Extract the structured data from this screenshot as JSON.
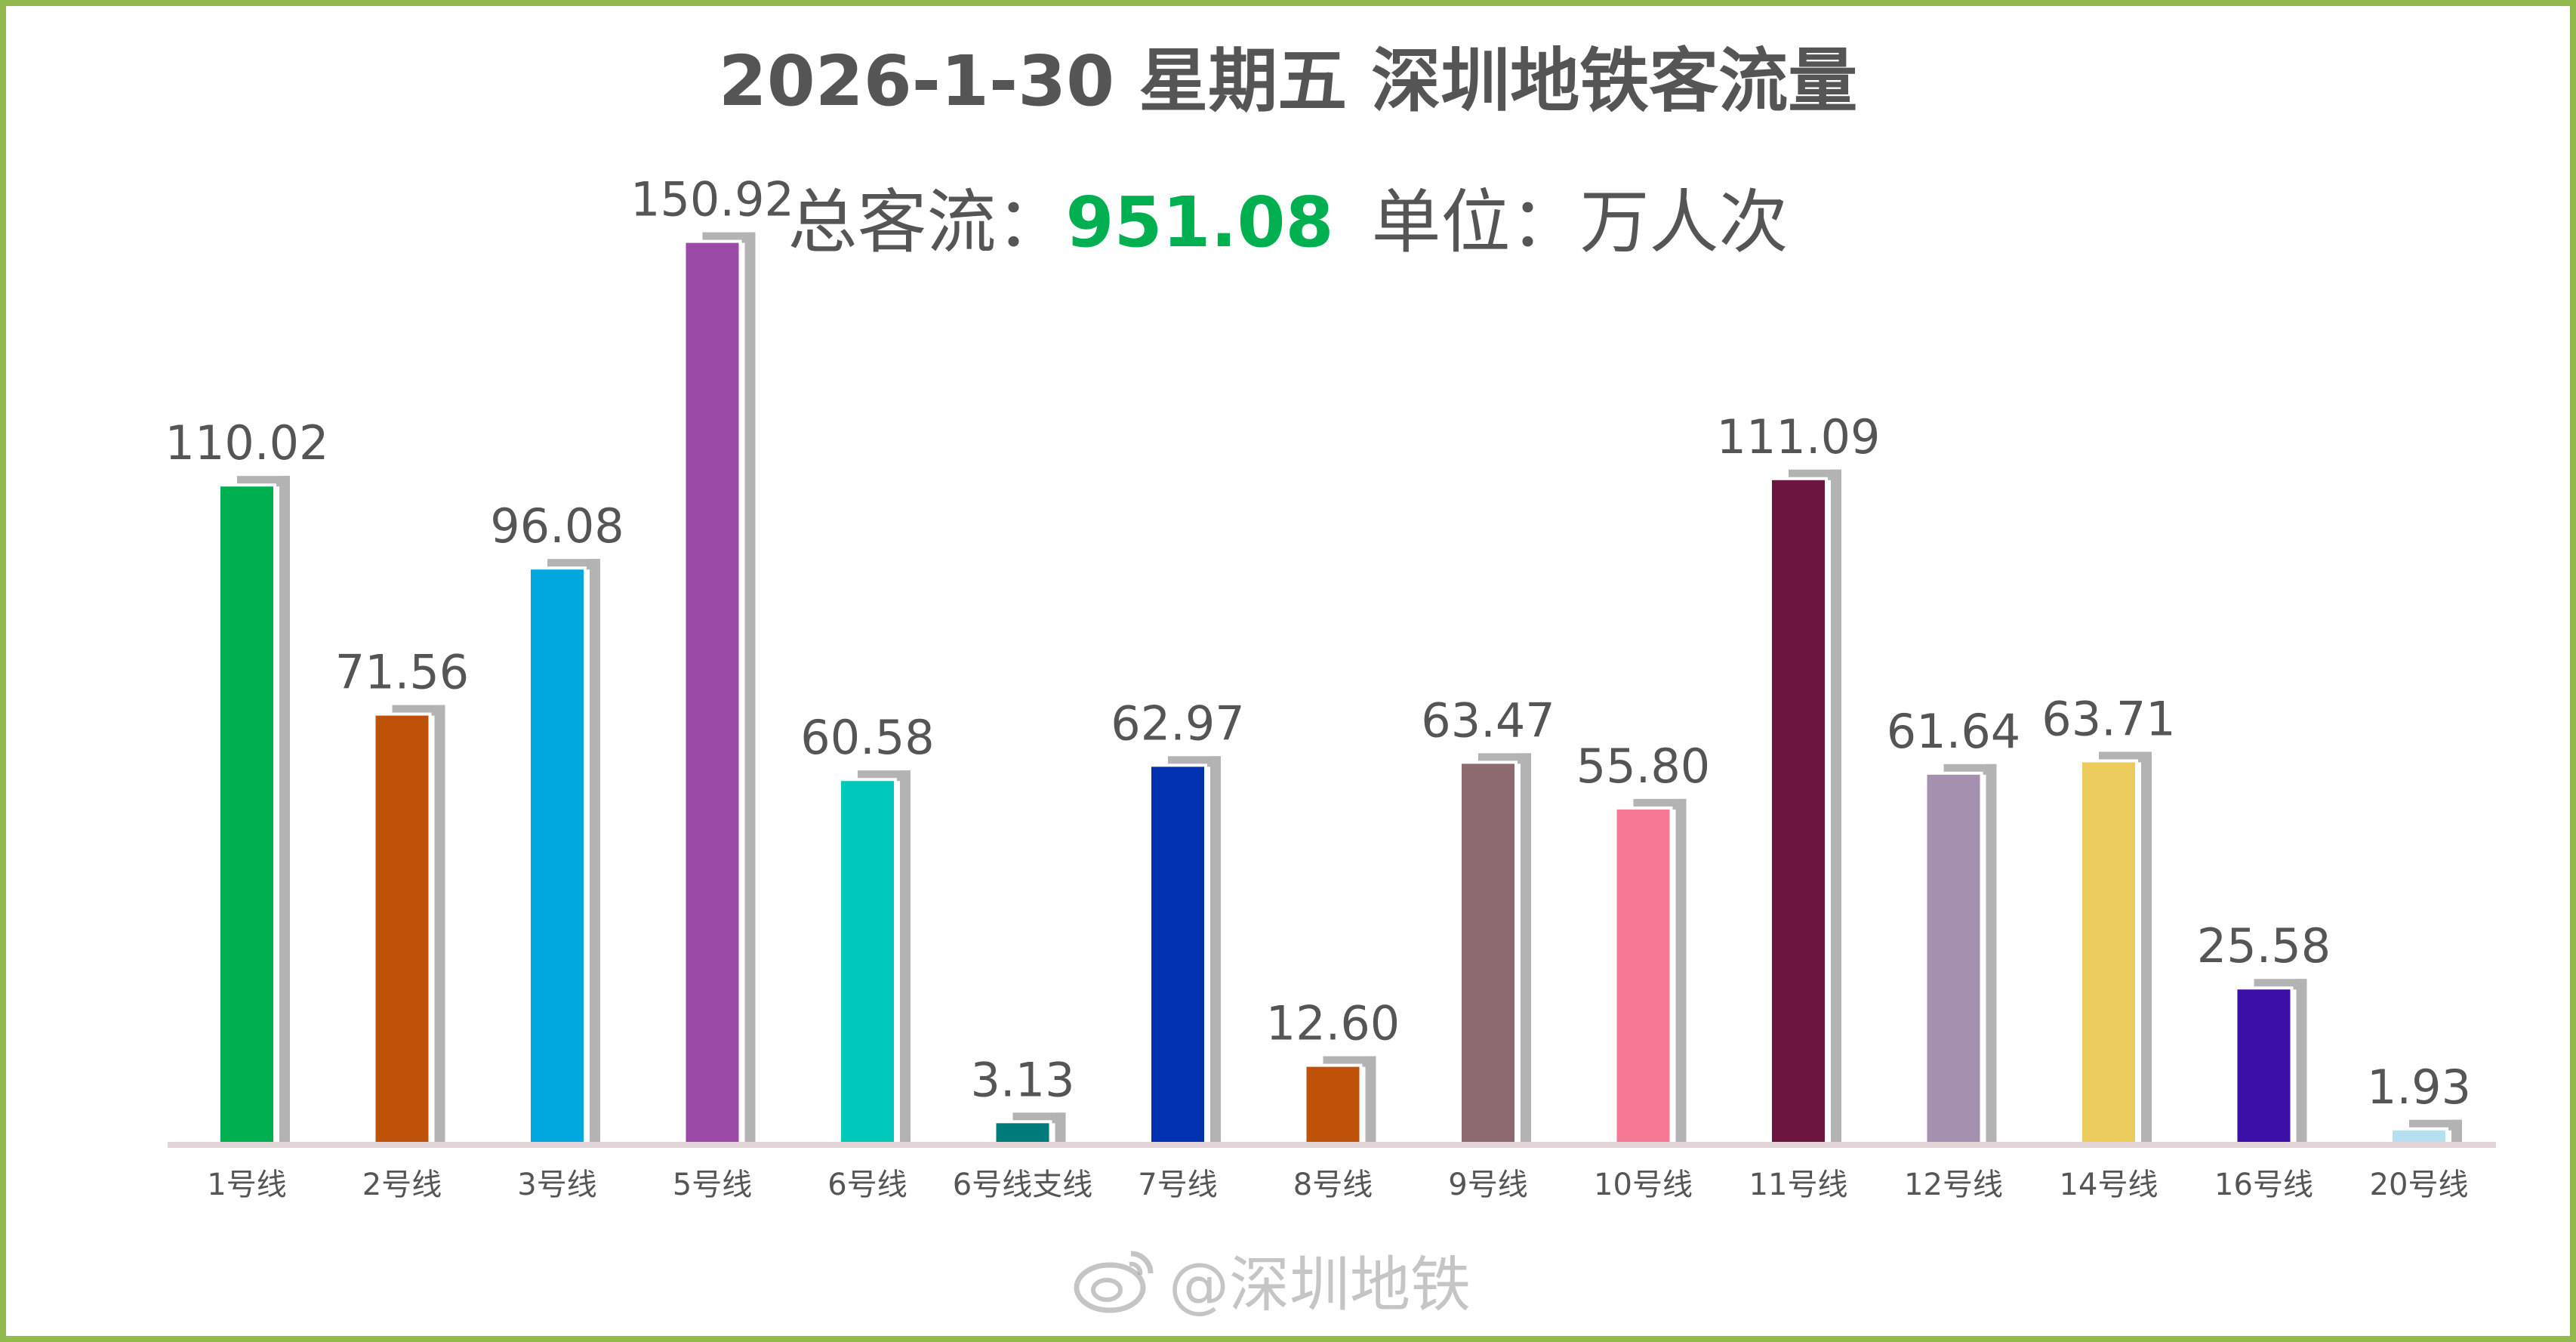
{
  "header": {
    "title": "2026-1-30 星期五  深圳地铁客流量",
    "total_label": "总客流：",
    "total_value": "951.08",
    "unit_label": "单位：万人次"
  },
  "watermark": {
    "text": "@深圳地铁",
    "icon": "weibo-icon"
  },
  "colors": {
    "frame": "#92b94c",
    "total": "#00b050",
    "text": "#555555",
    "shadow": "#b3b3b3",
    "axis": "#e3d4d8"
  },
  "chart_data": {
    "type": "bar",
    "title": "2026-1-30 星期五  深圳地铁客流量",
    "xlabel": "",
    "ylabel": "万人次",
    "ylim": [
      0,
      160
    ],
    "grid": false,
    "categories": [
      "1号线",
      "2号线",
      "3号线",
      "5号线",
      "6号线",
      "6号线支线",
      "7号线",
      "8号线",
      "9号线",
      "10号线",
      "11号线",
      "12号线",
      "14号线",
      "16号线",
      "20号线"
    ],
    "values": [
      110.02,
      71.56,
      96.08,
      150.92,
      60.58,
      3.13,
      62.97,
      12.6,
      63.47,
      55.8,
      111.09,
      61.64,
      63.71,
      25.58,
      1.93
    ],
    "labels": [
      "110.02",
      "71.56",
      "96.08",
      "150.92",
      "60.58",
      "3.13",
      "62.97",
      "12.60",
      "63.47",
      "55.80",
      "111.09",
      "61.64",
      "63.71",
      "25.58",
      "1.93"
    ],
    "colors": [
      "#00b050",
      "#bf5209",
      "#00a8e0",
      "#9b4aa8",
      "#00c8bb",
      "#007b7b",
      "#0031b0",
      "#bf5209",
      "#8c6a70",
      "#f57995",
      "#6b1540",
      "#a690b0",
      "#eccb5d",
      "#3b0fa8",
      "#b5e0f0"
    ]
  }
}
